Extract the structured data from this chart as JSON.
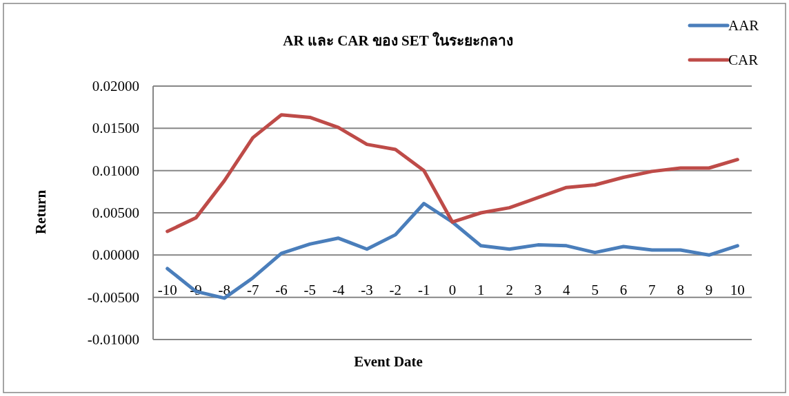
{
  "chart_data": {
    "type": "line",
    "title": "AR และ CAR ของ SET ในระยะกลาง",
    "xlabel": "Event Date",
    "ylabel": "Return",
    "categories": [
      "-10",
      "-9",
      "-8",
      "-7",
      "-6",
      "-5",
      "-4",
      "-3",
      "-2",
      "-1",
      "0",
      "1",
      "2",
      "3",
      "4",
      "5",
      "6",
      "7",
      "8",
      "9",
      "10"
    ],
    "series": [
      {
        "name": "AAR",
        "color": "#4a7ebb",
        "values": [
          -0.0016,
          -0.0043,
          -0.0051,
          -0.0027,
          0.0002,
          0.0013,
          0.002,
          0.0007,
          0.0024,
          0.0061,
          0.0039,
          0.0011,
          0.0007,
          0.0012,
          0.0011,
          0.0003,
          0.001,
          0.0006,
          0.0006,
          0.0,
          0.0011
        ]
      },
      {
        "name": "CAR",
        "color": "#be4b48",
        "values": [
          0.0028,
          0.0044,
          0.0088,
          0.0139,
          0.0166,
          0.0163,
          0.0151,
          0.0131,
          0.0125,
          0.01,
          0.0039,
          0.005,
          0.0056,
          0.0068,
          0.008,
          0.0083,
          0.0092,
          0.0099,
          0.0103,
          0.0103,
          0.0113
        ]
      }
    ],
    "ylim": [
      -0.01,
      0.02
    ],
    "yticks": [
      {
        "value": -0.01,
        "label": "-0.01000"
      },
      {
        "value": -0.005,
        "label": "-0.00500"
      },
      {
        "value": 0,
        "label": "0.00000"
      },
      {
        "value": 0.005,
        "label": "0.00500"
      },
      {
        "value": 0.01,
        "label": "0.01000"
      },
      {
        "value": 0.015,
        "label": "0.01500"
      },
      {
        "value": 0.02,
        "label": "0.02000"
      }
    ],
    "grid": "y",
    "legend": "top right",
    "marker": "none",
    "line_style": "solid"
  }
}
